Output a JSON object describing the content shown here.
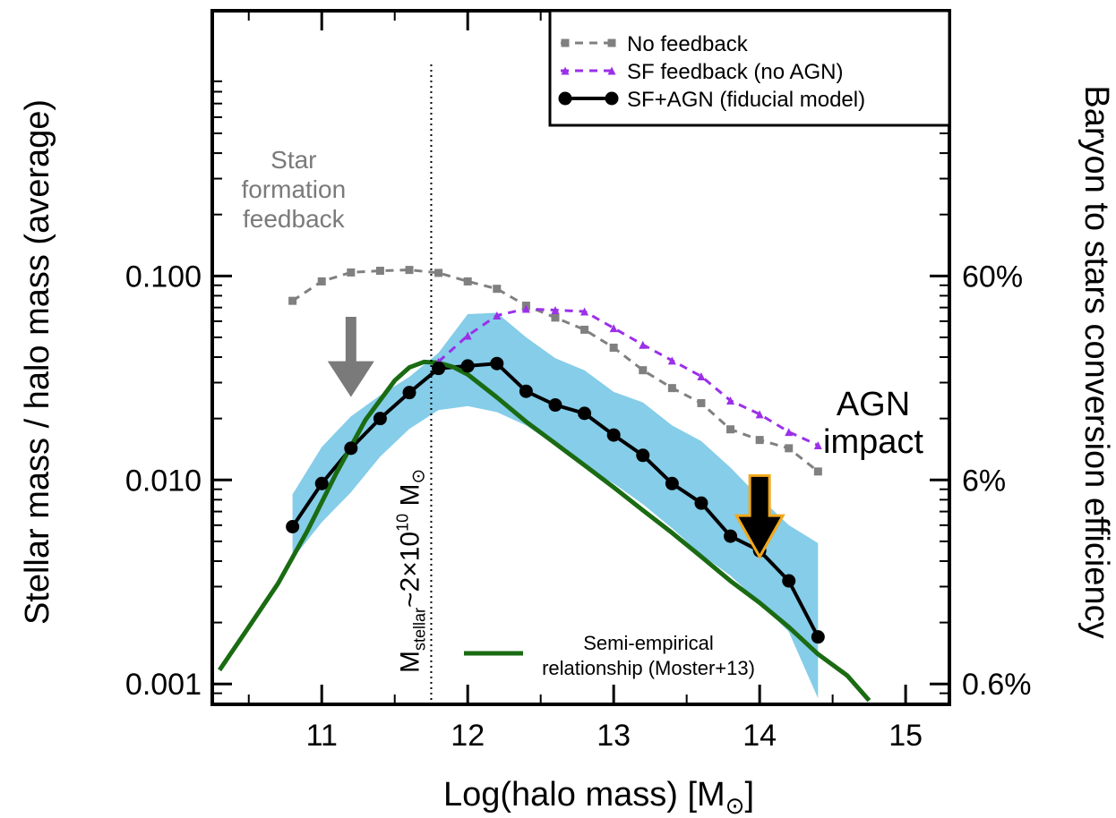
{
  "chart_data": {
    "type": "line",
    "xlabel": "Log(halo mass) [M",
    "xlabel_sub": "⊙",
    "xlabel_close": "]",
    "ylabel": "Stellar mass / halo mass (average)",
    "ylabel_right": "Baryon to stars conversion efficiency",
    "xlim": [
      10.25,
      15.3
    ],
    "ylim_log10": [
      -3.1,
      0.3
    ],
    "log_y": true,
    "x_ticks": [
      "11",
      "12",
      "13",
      "14",
      "15"
    ],
    "y_ticks": [
      "0.100",
      "0.010",
      "0.001"
    ],
    "y_ticks_right": [
      "60%",
      "6%",
      "0.6%"
    ],
    "legend_position": "top-right",
    "series": [
      {
        "name": "No feedback",
        "style": "dashed",
        "marker": "square",
        "color": "#808080",
        "x": [
          10.8,
          11.0,
          11.2,
          11.4,
          11.6,
          11.8,
          12.0,
          12.2,
          12.4,
          12.6,
          12.8,
          13.0,
          13.2,
          13.4,
          13.6,
          13.8,
          14.0,
          14.2,
          14.4
        ],
        "y": [
          0.0755,
          0.094,
          0.104,
          0.106,
          0.107,
          0.1035,
          0.094,
          0.0865,
          0.0715,
          0.0625,
          0.0545,
          0.0445,
          0.0345,
          0.0282,
          0.0238,
          0.0177,
          0.0157,
          0.0143,
          0.011
        ]
      },
      {
        "name": "SF feedback (no AGN)",
        "style": "dashed",
        "marker": "triangle",
        "color": "#9b30e8",
        "x": [
          11.8,
          12.0,
          12.2,
          12.4,
          12.6,
          12.8,
          13.0,
          13.2,
          13.4,
          13.6,
          13.8,
          14.0,
          14.2,
          14.4
        ],
        "y": [
          0.038,
          0.051,
          0.064,
          0.069,
          0.068,
          0.067,
          0.0555,
          0.046,
          0.0385,
          0.0322,
          0.0245,
          0.021,
          0.0172,
          0.0148
        ]
      },
      {
        "name": "SF+AGN (fiducial model)",
        "style": "solid",
        "marker": "circle",
        "color": "#000000",
        "x": [
          10.8,
          11.0,
          11.2,
          11.4,
          11.6,
          11.8,
          12.0,
          12.2,
          12.4,
          12.6,
          12.8,
          13.0,
          13.2,
          13.4,
          13.6,
          13.8,
          14.0,
          14.2,
          14.4
        ],
        "y": [
          0.0059,
          0.0096,
          0.0143,
          0.02,
          0.0268,
          0.0352,
          0.0362,
          0.0372,
          0.0272,
          0.0233,
          0.0212,
          0.0166,
          0.0132,
          0.0096,
          0.0077,
          0.0053,
          0.0045,
          0.0032,
          0.0017
        ]
      },
      {
        "name": "Semi-empirical relationship (Moster+13)",
        "style": "solid",
        "marker": "none",
        "color": "#1a6b12",
        "x": [
          10.3,
          10.5,
          10.7,
          10.9,
          11.1,
          11.3,
          11.5,
          11.6,
          11.7,
          11.8,
          11.9,
          12.0,
          12.2,
          12.4,
          12.6,
          12.8,
          13.0,
          13.2,
          13.4,
          13.6,
          13.8,
          14.0,
          14.2,
          14.4,
          14.6,
          14.75
        ],
        "y": [
          0.00117,
          0.0019,
          0.0031,
          0.0056,
          0.0108,
          0.0197,
          0.0307,
          0.0356,
          0.0379,
          0.0375,
          0.0358,
          0.0329,
          0.0254,
          0.0193,
          0.0151,
          0.0118,
          0.0092,
          0.0071,
          0.0055,
          0.0042,
          0.0032,
          0.0025,
          0.0019,
          0.0014,
          0.0011,
          0.00083
        ]
      }
    ],
    "band": {
      "color": "#85cde9",
      "x": [
        10.8,
        11.0,
        11.2,
        11.4,
        11.6,
        11.8,
        12.0,
        12.2,
        12.4,
        12.6,
        12.8,
        13.0,
        13.2,
        13.4,
        13.6,
        13.8,
        14.0,
        14.2,
        14.4
      ],
      "upper": [
        0.0085,
        0.0145,
        0.0205,
        0.026,
        0.032,
        0.042,
        0.065,
        0.066,
        0.05,
        0.0395,
        0.0345,
        0.027,
        0.024,
        0.0185,
        0.0155,
        0.0115,
        0.0082,
        0.006,
        0.0049
      ],
      "lower": [
        0.0041,
        0.0062,
        0.0087,
        0.013,
        0.0178,
        0.022,
        0.023,
        0.0215,
        0.0185,
        0.0148,
        0.0117,
        0.0096,
        0.0076,
        0.0058,
        0.0043,
        0.0034,
        0.0025,
        0.0018,
        0.00085
      ]
    },
    "vline": {
      "x": 11.75,
      "label_main": "M",
      "label_sub": "stellar",
      "label_tail": "~2×10",
      "label_sup": "10",
      "label_end": " M",
      "label_sun": "⊙"
    },
    "annotations": {
      "sf_feedback_text": [
        "Star",
        "formation",
        "feedback"
      ],
      "sf_arrow": {
        "x": 11.2,
        "y_from": 0.063,
        "y_to": 0.0255,
        "color": "#7a7a7a"
      },
      "agn_text": [
        "AGN",
        "impact"
      ],
      "agn_arrow": {
        "x": 14.0,
        "y_from": 0.0105,
        "y_to": 0.0042,
        "color": "#000000",
        "outline": "#f2a81c"
      }
    }
  }
}
